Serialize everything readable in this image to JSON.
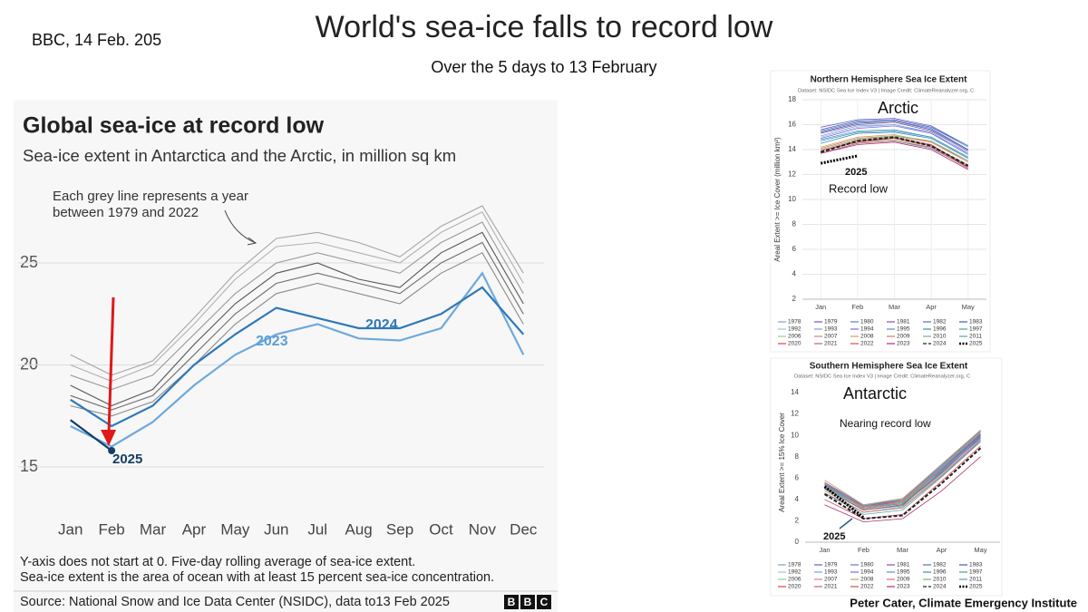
{
  "slide": {
    "note": "BBC, 14 Feb. 205",
    "title": "World's sea-ice falls to record low",
    "subtitle": "Over the 5 days to 13 February",
    "credit": "Peter Cater,  Climate Emergency Institute"
  },
  "chart_data": [
    {
      "type": "line",
      "title": "Global sea-ice at record low",
      "subtitle": "Sea-ice extent in Antarctica and the Arctic, in million sq km",
      "annotations": [
        "Each grey line represents a year",
        "between 1979 and 2022",
        "2023",
        "2024",
        "2025"
      ],
      "footnotes": [
        "Y-axis does not start at 0. Five-day rolling average of sea-ice extent.",
        "Sea-ice extent is the area of ocean with at least 15 percent sea-ice concentration."
      ],
      "source": "Source: National Snow and Ice Data Center (NSIDC), data to13 Feb 2025",
      "logo": [
        "B",
        "B",
        "C"
      ],
      "categories": [
        "Jan",
        "Feb",
        "Mar",
        "Apr",
        "May",
        "Jun",
        "Jul",
        "Aug",
        "Sep",
        "Oct",
        "Nov",
        "Dec"
      ],
      "ylim": [
        13,
        29
      ],
      "yticks": [
        15,
        20,
        25
      ],
      "grid": true,
      "legend": false,
      "series": [
        {
          "color": "#9a9a9a",
          "values": [
            19.5,
            18.8,
            19.5,
            21.5,
            23.5,
            25.0,
            25.5,
            25.0,
            24.5,
            26.0,
            27.0,
            23.5
          ]
        },
        {
          "color": "#6e6e6e",
          "values": [
            18.5,
            17.8,
            18.5,
            20.5,
            22.5,
            24.0,
            24.5,
            24.0,
            23.5,
            25.0,
            26.0,
            22.5
          ]
        },
        {
          "color": "#b0b0b0",
          "values": [
            20.0,
            19.2,
            20.0,
            22.0,
            24.2,
            25.8,
            26.0,
            25.5,
            25.0,
            26.5,
            27.5,
            24.0
          ]
        },
        {
          "color": "#555555",
          "values": [
            19.0,
            18.0,
            18.8,
            21.0,
            23.0,
            24.5,
            25.0,
            24.2,
            23.8,
            25.5,
            26.5,
            23.0
          ]
        },
        {
          "color": "#8a8a8a",
          "values": [
            18.0,
            17.5,
            18.2,
            20.0,
            22.0,
            23.5,
            24.0,
            23.5,
            23.0,
            24.5,
            25.5,
            22.0
          ]
        },
        {
          "color": "#a5a5a5",
          "values": [
            20.5,
            19.5,
            20.2,
            22.3,
            24.5,
            26.2,
            26.5,
            26.0,
            25.3,
            26.8,
            27.8,
            24.5
          ]
        },
        {
          "name": "2023",
          "color": "#6fa9dc",
          "values": [
            17.0,
            16.0,
            17.2,
            19.0,
            20.5,
            21.5,
            22.0,
            21.3,
            21.2,
            21.8,
            24.5,
            20.5
          ]
        },
        {
          "name": "2024",
          "color": "#2f78b8",
          "values": [
            18.3,
            17.0,
            18.0,
            20.0,
            21.5,
            22.8,
            22.3,
            21.8,
            21.8,
            22.5,
            23.8,
            21.5
          ]
        },
        {
          "name": "2025",
          "color": "#143e66",
          "values": [
            17.3,
            15.8,
            null,
            null,
            null,
            null,
            null,
            null,
            null,
            null,
            null,
            null
          ]
        }
      ]
    },
    {
      "type": "line",
      "title": "Northern Hemisphere Sea Ice Extent",
      "subtitle": "Dataset: NSIDC Sea Ice Index V3 | Image Credit: ClimateReanalyzer.org, C",
      "ylabel": "Areal Extent >= Ice Cover (million km²)",
      "annotations": [
        "Arctic",
        "2025",
        "Record low"
      ],
      "categories": [
        "Jan",
        "Feb",
        "Mar",
        "Apr",
        "May"
      ],
      "ylim": [
        2,
        18
      ],
      "yticks": [
        2,
        4,
        6,
        8,
        10,
        12,
        14,
        16,
        18
      ],
      "grid": true,
      "legend": true,
      "series": [
        {
          "name": "1978",
          "color": "#7aa6d8",
          "values": [
            15.6,
            16.3,
            16.4,
            15.8,
            14.2
          ]
        },
        {
          "name": "1979",
          "color": "#6a5acd",
          "values": [
            15.8,
            16.4,
            16.5,
            15.9,
            14.3
          ]
        },
        {
          "name": "1980",
          "color": "#5a7fc8",
          "values": [
            15.5,
            16.2,
            16.3,
            15.7,
            14.0
          ]
        },
        {
          "name": "1981",
          "color": "#8a4fa8",
          "values": [
            15.3,
            16.0,
            16.2,
            15.5,
            13.9
          ]
        },
        {
          "name": "1982",
          "color": "#5b6fb0",
          "values": [
            15.6,
            16.3,
            16.4,
            15.8,
            14.3
          ]
        },
        {
          "name": "1983",
          "color": "#3c5ea8",
          "values": [
            15.4,
            16.1,
            16.3,
            15.6,
            14.0
          ]
        },
        {
          "name": "1992",
          "color": "#9fc0e0",
          "values": [
            15.0,
            15.8,
            16.0,
            15.3,
            13.8
          ]
        },
        {
          "name": "1993",
          "color": "#7c9ed8",
          "values": [
            15.1,
            15.9,
            16.0,
            15.4,
            13.7
          ]
        },
        {
          "name": "1994",
          "color": "#7b68ee",
          "values": [
            14.9,
            15.7,
            15.9,
            15.3,
            13.6
          ]
        },
        {
          "name": "1995",
          "color": "#4f93c8",
          "values": [
            14.8,
            15.5,
            15.6,
            15.0,
            13.4
          ]
        },
        {
          "name": "1996",
          "color": "#3a8ac0",
          "values": [
            14.5,
            15.3,
            15.4,
            14.9,
            13.3
          ]
        },
        {
          "name": "1997",
          "color": "#45a0a0",
          "values": [
            14.7,
            15.4,
            15.5,
            15.0,
            13.4
          ]
        },
        {
          "name": "2006",
          "color": "#8fd08f",
          "values": [
            13.9,
            14.6,
            14.8,
            14.3,
            12.8
          ]
        },
        {
          "name": "2007",
          "color": "#d98080",
          "values": [
            13.9,
            14.7,
            14.9,
            14.3,
            12.7
          ]
        },
        {
          "name": "2008",
          "color": "#c8a060",
          "values": [
            14.2,
            15.0,
            15.2,
            14.6,
            13.1
          ]
        },
        {
          "name": "2009",
          "color": "#e07070",
          "values": [
            14.1,
            14.9,
            15.1,
            14.6,
            13.0
          ]
        },
        {
          "name": "2010",
          "color": "#70b870",
          "values": [
            14.0,
            14.8,
            15.1,
            14.7,
            13.1
          ]
        },
        {
          "name": "2011",
          "color": "#5ca0a8",
          "values": [
            13.7,
            14.5,
            14.7,
            14.1,
            12.6
          ]
        },
        {
          "name": "2020",
          "color": "#e04040",
          "values": [
            13.9,
            14.7,
            15.0,
            14.4,
            12.6
          ]
        },
        {
          "name": "2021",
          "color": "#c06080",
          "values": [
            13.7,
            14.5,
            14.7,
            14.2,
            12.5
          ]
        },
        {
          "name": "2022",
          "color": "#d05050",
          "values": [
            13.9,
            14.6,
            14.9,
            14.3,
            12.6
          ]
        },
        {
          "name": "2023",
          "color": "#b03070",
          "values": [
            13.7,
            14.4,
            14.6,
            14.0,
            12.4
          ]
        },
        {
          "name": "2024",
          "color": "#222222",
          "dash": "dashed",
          "values": [
            13.8,
            14.7,
            15.0,
            14.3,
            12.7
          ]
        },
        {
          "name": "2025",
          "color": "#000000",
          "dash": "dotted",
          "values": [
            12.9,
            13.5,
            null,
            null,
            null
          ]
        }
      ]
    },
    {
      "type": "line",
      "title": "Southern Hemisphere Sea Ice Extent",
      "subtitle": "Dataset: NSIDC Sea Ice Index V3 | Image Credit: ClimateReanalyzer.org, C",
      "ylabel": "Areal Extent >= 15% Ice Cover",
      "annotations": [
        "Antarctic",
        "Nearing record low",
        "2025"
      ],
      "categories": [
        "Jan",
        "Feb",
        "Mar",
        "Apr",
        "May"
      ],
      "ylim": [
        0,
        14
      ],
      "yticks": [
        0,
        2,
        4,
        6,
        8,
        10,
        12,
        14
      ],
      "grid": false,
      "legend": true,
      "series": [
        {
          "name": "1978",
          "color": "#7aa6d8",
          "values": [
            5.2,
            3.2,
            3.6,
            6.8,
            10.0
          ]
        },
        {
          "name": "1979",
          "color": "#6a5acd",
          "values": [
            5.5,
            3.4,
            3.9,
            7.0,
            10.2
          ]
        },
        {
          "name": "1980",
          "color": "#5a7fc8",
          "values": [
            5.6,
            3.5,
            4.0,
            7.2,
            10.5
          ]
        },
        {
          "name": "1981",
          "color": "#8a4fa8",
          "values": [
            5.0,
            3.0,
            3.5,
            6.5,
            9.8
          ]
        },
        {
          "name": "1982",
          "color": "#5b6fb0",
          "values": [
            5.4,
            3.4,
            3.8,
            6.9,
            10.0
          ]
        },
        {
          "name": "1983",
          "color": "#3c5ea8",
          "values": [
            5.3,
            3.3,
            3.8,
            6.8,
            10.1
          ]
        },
        {
          "name": "1992",
          "color": "#9fc0e0",
          "values": [
            5.0,
            3.1,
            3.6,
            6.6,
            9.9
          ]
        },
        {
          "name": "1993",
          "color": "#7c9ed8",
          "values": [
            4.8,
            2.8,
            3.3,
            6.4,
            9.6
          ]
        },
        {
          "name": "1994",
          "color": "#7b68ee",
          "values": [
            5.1,
            3.2,
            3.7,
            6.8,
            10.0
          ]
        },
        {
          "name": "1995",
          "color": "#4f93c8",
          "values": [
            5.2,
            3.4,
            4.0,
            7.1,
            10.4
          ]
        },
        {
          "name": "1996",
          "color": "#3a8ac0",
          "values": [
            5.0,
            3.0,
            3.4,
            6.7,
            9.9
          ]
        },
        {
          "name": "1997",
          "color": "#45a0a0",
          "values": [
            5.1,
            3.2,
            3.6,
            6.6,
            9.7
          ]
        },
        {
          "name": "2006",
          "color": "#8fd08f",
          "values": [
            4.8,
            2.8,
            3.3,
            6.3,
            9.5
          ]
        },
        {
          "name": "2007",
          "color": "#d98080",
          "values": [
            5.2,
            3.2,
            3.8,
            6.9,
            10.2
          ]
        },
        {
          "name": "2008",
          "color": "#c8a060",
          "values": [
            5.8,
            3.5,
            4.1,
            7.3,
            10.5
          ]
        },
        {
          "name": "2009",
          "color": "#e07070",
          "values": [
            5.6,
            3.3,
            3.9,
            7.0,
            10.3
          ]
        },
        {
          "name": "2010",
          "color": "#70b870",
          "values": [
            5.3,
            3.1,
            3.7,
            6.9,
            10.2
          ]
        },
        {
          "name": "2011",
          "color": "#5ca0a8",
          "values": [
            4.6,
            2.6,
            3.0,
            6.1,
            9.4
          ]
        },
        {
          "name": "2020",
          "color": "#e04040",
          "values": [
            5.0,
            3.0,
            3.5,
            6.5,
            9.8
          ]
        },
        {
          "name": "2021",
          "color": "#c06080",
          "values": [
            4.6,
            2.8,
            3.2,
            6.2,
            9.5
          ]
        },
        {
          "name": "2022",
          "color": "#d05050",
          "values": [
            4.0,
            2.2,
            2.6,
            5.7,
            9.0
          ]
        },
        {
          "name": "2023",
          "color": "#b03070",
          "values": [
            3.5,
            1.9,
            2.2,
            4.8,
            8.0
          ]
        },
        {
          "name": "2024",
          "color": "#222222",
          "dash": "dashed",
          "values": [
            4.5,
            2.2,
            2.5,
            5.5,
            8.8
          ]
        },
        {
          "name": "2025",
          "color": "#000000",
          "dash": "dotted",
          "values": [
            5.2,
            2.3,
            null,
            null,
            null
          ]
        }
      ]
    }
  ]
}
